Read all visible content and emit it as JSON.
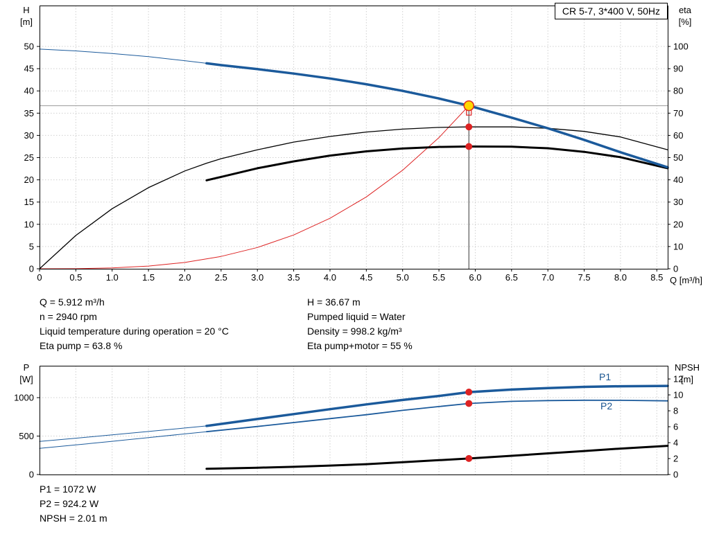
{
  "title": "CR 5-7, 3*400 V, 50Hz",
  "labels": {
    "h_axis": "H",
    "h_unit": "[m]",
    "eta_axis": "eta",
    "eta_unit": "[%]",
    "q_axis": "Q [m³/h]",
    "p_axis": "P",
    "p_unit": "[W]",
    "npsh_axis": "NPSH",
    "npsh_unit": "[m]",
    "p1_curve": "P1",
    "p2_curve": "P2"
  },
  "colors": {
    "curve_blue": "#1b5a9b",
    "curve_black": "#000000",
    "curve_red": "#dd2222",
    "duty_yellow": "#ffd800",
    "duty_ring": "#e03020",
    "grid": "#cfcfcf",
    "crosshair_h": "#999999",
    "crosshair_v": "#333333"
  },
  "info": {
    "left": [
      "Q = 5.912 m³/h",
      "n = 2940 rpm",
      "Liquid temperature during operation = 20 °C",
      "Eta pump = 63.8 %"
    ],
    "right": [
      "H = 36.67 m",
      "Pumped liquid = Water",
      "Density = 998.2 kg/m³",
      "Eta pump+motor = 55 %"
    ]
  },
  "results_bottom": [
    "P1 = 1072 W",
    "P2 = 924.2 W",
    "NPSH = 2.01 m"
  ],
  "duty_point": {
    "q_m3h": 5.912,
    "h_m": 36.67,
    "eta_pump_pct": 63.8,
    "eta_total_pct": 55,
    "p1_w": 1072,
    "p2_w": 924.2,
    "npsh_m": 2.01
  },
  "chart_data": [
    {
      "type": "line",
      "name": "hq-eta-chart",
      "title": "CR 5-7, 3*400 V, 50Hz",
      "xlabel": "Q [m³/h]",
      "ylabel_left": "H [m]",
      "ylabel_right": "eta [%]",
      "xlim": [
        0,
        8.65
      ],
      "ylim_left": [
        0,
        59.2
      ],
      "ylim_right": [
        0,
        118.4
      ],
      "x_ticks": [
        0,
        0.5,
        1,
        1.5,
        2,
        2.5,
        3,
        3.5,
        4,
        4.5,
        5,
        5.5,
        6,
        6.5,
        7,
        7.5,
        8,
        8.5
      ],
      "x_tick_labels": [
        "0",
        "0.5",
        "1.0",
        "1.5",
        "2.0",
        "2.5",
        "3.0",
        "3.5",
        "4.0",
        "4.5",
        "5.0",
        "5.5",
        "6.0",
        "6.5",
        "7.0",
        "7.5",
        "8.0",
        "8.5"
      ],
      "show_x_ticks": true,
      "left_ticks": [
        0,
        5,
        10,
        15,
        20,
        25,
        30,
        35,
        40,
        45,
        50
      ],
      "left_tick_labels": [
        "0",
        "5",
        "10",
        "15",
        "20",
        "25",
        "30",
        "35",
        "40",
        "45",
        "50"
      ],
      "right_ticks": [
        0,
        10,
        20,
        30,
        40,
        50,
        60,
        70,
        80,
        90,
        100
      ],
      "right_tick_labels": [
        "0",
        "10",
        "20",
        "30",
        "40",
        "50",
        "60",
        "70",
        "80",
        "90",
        "100"
      ],
      "crosshair": {
        "q": 5.912,
        "h": 36.67
      },
      "series": [
        {
          "name": "hq-curve-thin",
          "axis": "left",
          "color": "#1b5a9b",
          "width": 1,
          "points": [
            [
              0,
              49.4
            ],
            [
              0.5,
              49.0
            ],
            [
              1,
              48.4
            ],
            [
              1.5,
              47.7
            ],
            [
              2,
              46.8
            ],
            [
              2.3,
              46.2
            ]
          ]
        },
        {
          "name": "system-curve",
          "axis": "left",
          "color": "#dd2222",
          "width": 1,
          "points": [
            [
              0,
              0
            ],
            [
              0.5,
              0.02
            ],
            [
              1,
              0.18
            ],
            [
              1.5,
              0.6
            ],
            [
              2,
              1.42
            ],
            [
              2.5,
              2.77
            ],
            [
              3,
              4.79
            ],
            [
              3.5,
              7.6
            ],
            [
              4,
              11.35
            ],
            [
              4.5,
              16.16
            ],
            [
              5,
              22.17
            ],
            [
              5.5,
              29.5
            ],
            [
              5.912,
              36.67
            ]
          ]
        },
        {
          "name": "eta-pump-curve",
          "axis": "right",
          "color": "#000000",
          "width": 1.3,
          "points": [
            [
              0,
              0
            ],
            [
              0.5,
              15
            ],
            [
              1,
              27
            ],
            [
              1.5,
              36.5
            ],
            [
              2,
              44
            ],
            [
              2.3,
              47.5
            ],
            [
              2.5,
              49.5
            ],
            [
              3,
              53.5
            ],
            [
              3.5,
              57
            ],
            [
              4,
              59.5
            ],
            [
              4.5,
              61.5
            ],
            [
              5,
              62.8
            ],
            [
              5.5,
              63.6
            ],
            [
              5.912,
              63.8
            ],
            [
              6.5,
              63.8
            ],
            [
              7,
              63.2
            ],
            [
              7.5,
              61.8
            ],
            [
              8,
              59.3
            ],
            [
              8.65,
              53.5
            ]
          ]
        },
        {
          "name": "eta-pump-motor-curve",
          "axis": "right",
          "color": "#000000",
          "width": 3,
          "points": [
            [
              2.3,
              39.8
            ],
            [
              2.5,
              41.3
            ],
            [
              3,
              45.2
            ],
            [
              3.5,
              48.3
            ],
            [
              4,
              50.9
            ],
            [
              4.5,
              52.8
            ],
            [
              5,
              54.1
            ],
            [
              5.5,
              54.8
            ],
            [
              5.912,
              55
            ],
            [
              6.5,
              54.9
            ],
            [
              7,
              54.2
            ],
            [
              7.5,
              52.6
            ],
            [
              8,
              50.2
            ],
            [
              8.65,
              45.2
            ]
          ]
        },
        {
          "name": "hq-curve",
          "axis": "left",
          "color": "#1b5a9b",
          "width": 3.5,
          "points": [
            [
              2.3,
              46.2
            ],
            [
              2.5,
              45.8
            ],
            [
              3,
              44.9
            ],
            [
              3.5,
              43.9
            ],
            [
              4,
              42.8
            ],
            [
              4.5,
              41.5
            ],
            [
              5,
              40.0
            ],
            [
              5.5,
              38.3
            ],
            [
              5.912,
              36.67
            ],
            [
              6.5,
              34.0
            ],
            [
              7,
              31.6
            ],
            [
              7.5,
              29.0
            ],
            [
              8,
              26.2
            ],
            [
              8.65,
              22.8
            ]
          ]
        }
      ],
      "markers": [
        {
          "name": "requested-duty-marker",
          "type": "square",
          "q": 5.912,
          "axis": "left",
          "v": 35.1,
          "size": 7,
          "color": "#dd2222"
        },
        {
          "name": "duty-point-marker",
          "type": "circle",
          "q": 5.912,
          "axis": "left",
          "v": 36.67,
          "r": 7,
          "fill": "#ffd800",
          "stroke": "#e03020",
          "stroke_w": 1.6
        },
        {
          "name": "eta-pump-point",
          "type": "circle",
          "q": 5.912,
          "axis": "right",
          "v": 63.8,
          "r": 5,
          "fill": "#dd2222"
        },
        {
          "name": "eta-pump-motor-point",
          "type": "circle",
          "q": 5.912,
          "axis": "right",
          "v": 55,
          "r": 5,
          "fill": "#dd2222"
        }
      ]
    },
    {
      "type": "line",
      "name": "power-npsh-chart",
      "title": "",
      "xlabel": "Q [m³/h]",
      "ylabel_left": "P [W]",
      "ylabel_right": "NPSH [m]",
      "xlim": [
        0,
        8.65
      ],
      "ylim_left": [
        0,
        1415
      ],
      "ylim_right": [
        0,
        13.66
      ],
      "x_ticks": [
        0,
        0.5,
        1,
        1.5,
        2,
        2.5,
        3,
        3.5,
        4,
        4.5,
        5,
        5.5,
        6,
        6.5,
        7,
        7.5,
        8,
        8.5
      ],
      "x_tick_labels": null,
      "show_x_ticks": false,
      "left_ticks": [
        0,
        500,
        1000
      ],
      "left_tick_labels": [
        "0",
        "500",
        "1000"
      ],
      "right_ticks": [
        0,
        2,
        4,
        6,
        8,
        10,
        12
      ],
      "right_tick_labels": [
        "0",
        "2",
        "4",
        "6",
        "8",
        "10",
        "12"
      ],
      "crosshair": null,
      "series": [
        {
          "name": "p1-curve-thin",
          "axis": "left",
          "color": "#1b5a9b",
          "width": 1,
          "points": [
            [
              0,
              430
            ],
            [
              0.5,
              472
            ],
            [
              1,
              516
            ],
            [
              1.5,
              560
            ],
            [
              2,
              605
            ],
            [
              2.3,
              632
            ]
          ]
        },
        {
          "name": "p2-curve-thin",
          "axis": "left",
          "color": "#1b5a9b",
          "width": 1,
          "points": [
            [
              0,
              340
            ],
            [
              0.5,
              385
            ],
            [
              1,
              432
            ],
            [
              1.5,
              480
            ],
            [
              2,
              528
            ],
            [
              2.3,
              557
            ]
          ]
        },
        {
          "name": "p2-curve",
          "axis": "left",
          "color": "#1b5a9b",
          "width": 1.8,
          "points": [
            [
              2.3,
              557
            ],
            [
              3,
              625
            ],
            [
              3.5,
              676
            ],
            [
              4,
              727
            ],
            [
              4.5,
              778
            ],
            [
              5,
              835
            ],
            [
              5.5,
              884
            ],
            [
              5.912,
              924.2
            ],
            [
              6.5,
              952
            ],
            [
              7,
              962
            ],
            [
              7.5,
              966
            ],
            [
              8,
              965
            ],
            [
              8.65,
              958
            ]
          ]
        },
        {
          "name": "p1-curve",
          "axis": "left",
          "color": "#1b5a9b",
          "width": 3.5,
          "points": [
            [
              2.3,
              632
            ],
            [
              3,
              722
            ],
            [
              3.5,
              786
            ],
            [
              4,
              850
            ],
            [
              4.5,
              912
            ],
            [
              5,
              970
            ],
            [
              5.5,
              1022
            ],
            [
              5.912,
              1072
            ],
            [
              6.5,
              1105
            ],
            [
              7,
              1125
            ],
            [
              7.5,
              1140
            ],
            [
              8,
              1148
            ],
            [
              8.65,
              1153
            ]
          ]
        },
        {
          "name": "npsh-curve",
          "axis": "right",
          "color": "#000000",
          "width": 3,
          "points": [
            [
              2.3,
              0.72
            ],
            [
              3,
              0.85
            ],
            [
              3.5,
              0.97
            ],
            [
              4,
              1.12
            ],
            [
              4.5,
              1.3
            ],
            [
              5,
              1.55
            ],
            [
              5.5,
              1.8
            ],
            [
              5.912,
              2.01
            ],
            [
              6.5,
              2.35
            ],
            [
              7,
              2.65
            ],
            [
              7.5,
              2.95
            ],
            [
              8,
              3.25
            ],
            [
              8.65,
              3.6
            ]
          ]
        }
      ],
      "markers": [
        {
          "name": "p1-point",
          "type": "circle",
          "q": 5.912,
          "axis": "left",
          "v": 1072,
          "r": 5,
          "fill": "#dd2222"
        },
        {
          "name": "p2-point",
          "type": "circle",
          "q": 5.912,
          "axis": "left",
          "v": 924.2,
          "r": 5,
          "fill": "#dd2222"
        },
        {
          "name": "npsh-point",
          "type": "circle",
          "q": 5.912,
          "axis": "right",
          "v": 2.01,
          "r": 5,
          "fill": "#dd2222"
        }
      ]
    }
  ]
}
